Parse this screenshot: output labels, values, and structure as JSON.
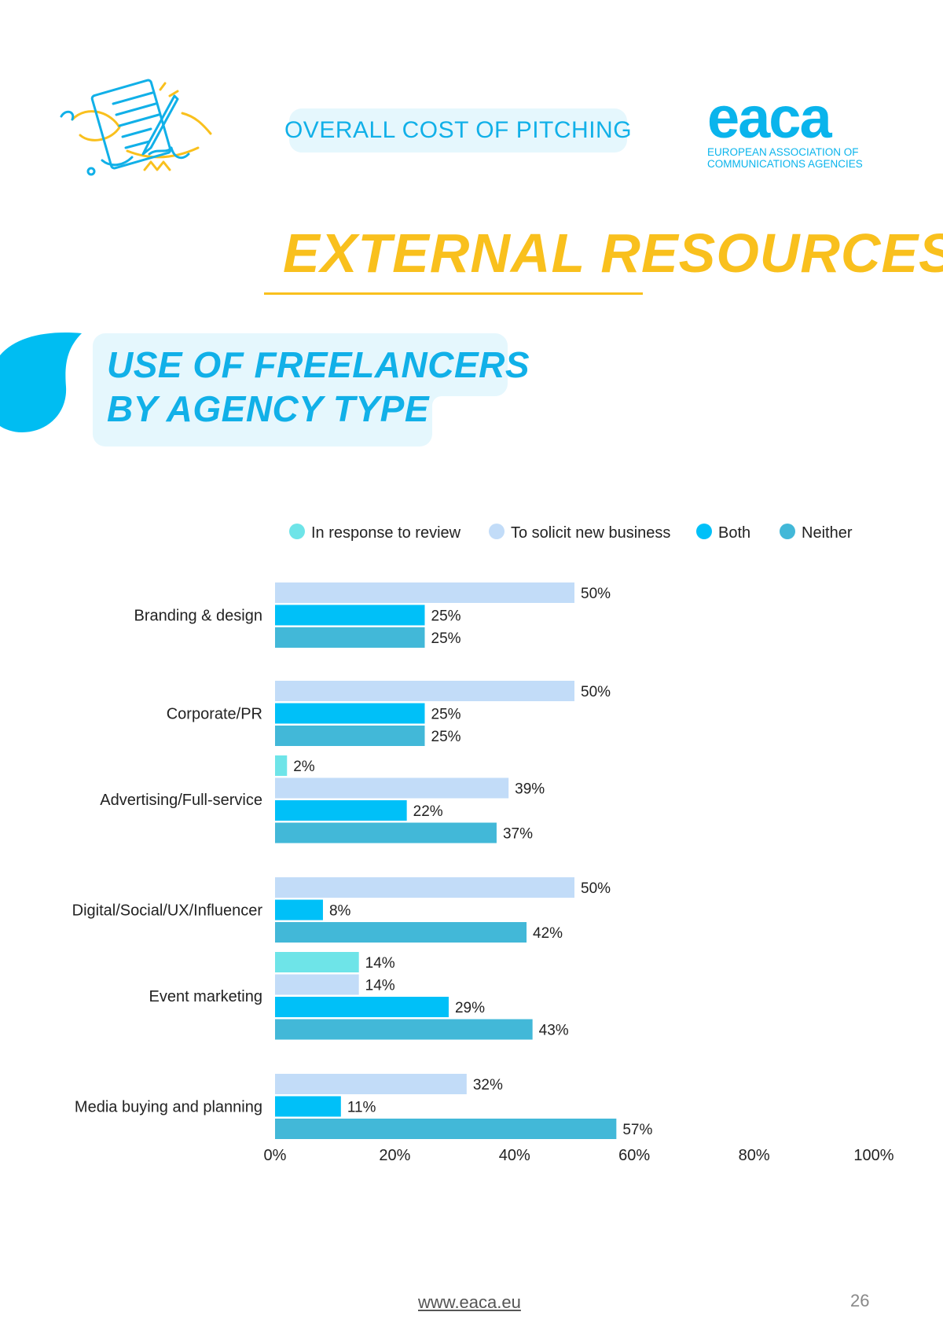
{
  "header": {
    "section_label": "OVERALL COST OF PITCHING",
    "logo_word": "eaca",
    "logo_subtitle": "EUROPEAN ASSOCIATION OF\nCOMMUNICATIONS AGENCIES"
  },
  "page_title": "EXTERNAL RESOURCES",
  "chart_heading": [
    "USE OF FREELANCERS",
    "BY AGENCY TYPE"
  ],
  "colors": {
    "accent_blue": "#11b0e8",
    "accent_yellow": "#f9c01d",
    "series": [
      "#6ee4e8",
      "#c2dcf8",
      "#00c0f8",
      "#42b8d8"
    ]
  },
  "chart_data": {
    "type": "bar",
    "orientation": "horizontal",
    "legend_position": "top",
    "categories": [
      "Branding & design",
      "Corporate/PR",
      "Advertising/Full-service",
      "Digital/Social/UX/Influencer",
      "Event marketing",
      "Media buying and planning"
    ],
    "series": [
      {
        "name": "In response to review",
        "color": "#6ee4e8",
        "values": [
          null,
          null,
          2,
          null,
          14,
          null
        ]
      },
      {
        "name": "To solicit new business",
        "color": "#c2dcf8",
        "values": [
          50,
          50,
          39,
          50,
          14,
          32
        ]
      },
      {
        "name": "Both",
        "color": "#00c0f8",
        "values": [
          25,
          25,
          22,
          8,
          29,
          11
        ]
      },
      {
        "name": "Neither",
        "color": "#42b8d8",
        "values": [
          25,
          25,
          37,
          42,
          43,
          57
        ]
      }
    ],
    "xlim": [
      0,
      100
    ],
    "x_ticks": [
      0,
      20,
      40,
      60,
      80,
      100
    ],
    "value_suffix": "%",
    "grid": false
  },
  "footer": {
    "url": "www.eaca.eu",
    "page_number": "26"
  }
}
